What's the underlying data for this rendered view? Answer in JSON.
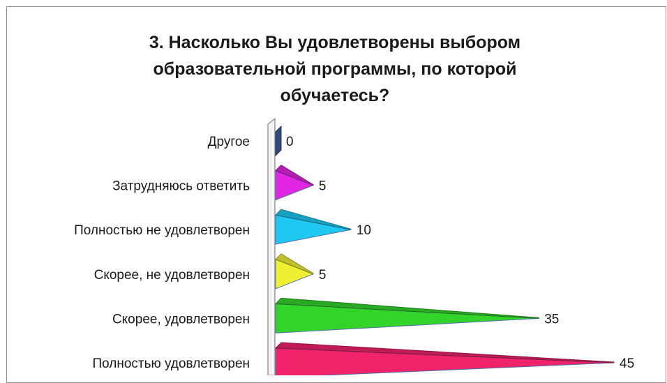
{
  "chart_data": {
    "type": "bar",
    "orientation": "horizontal",
    "title": "3. Насколько Вы удовлетворены выбором образовательной программы, по которой обучаетесь?",
    "categories": [
      "Другое",
      "Затрудняюсь ответить",
      "Полностью не удовлетворен",
      "Скорее, не удовлетворен",
      "Скорее, удовлетворен",
      "Полностью удовлетворен"
    ],
    "values": [
      0,
      5,
      10,
      5,
      35,
      45
    ],
    "colors": [
      "#2e4a7a",
      "#e026e0",
      "#1ec8f0",
      "#f0f032",
      "#33d42a",
      "#f0226a"
    ],
    "xlim": [
      0,
      45
    ],
    "grid": false,
    "legend": "none"
  }
}
